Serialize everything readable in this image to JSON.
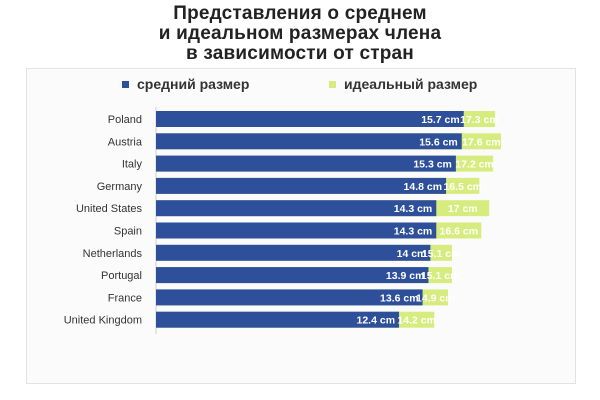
{
  "title_lines": [
    "Представления о среднем",
    "и идеальном размерах члена",
    "в зависимости от стран"
  ],
  "colors": {
    "average": "#2e4f9a",
    "ideal": "#d7ec7e",
    "title": "#222222"
  },
  "chart_data": {
    "type": "bar",
    "orientation": "horizontal",
    "title": "Представления о среднем и идеальном размерах члена в зависимости от стран",
    "unit": "cm",
    "categories": [
      "Poland",
      "Austria",
      "Italy",
      "Germany",
      "United States",
      "Spain",
      "Netherlands",
      "Portugal",
      "France",
      "United Kingdom"
    ],
    "series": [
      {
        "name": "средний размер",
        "values": [
          15.7,
          15.6,
          15.3,
          14.8,
          14.3,
          14.3,
          14.0,
          13.9,
          13.6,
          12.4
        ],
        "labels": [
          "15.7 cm",
          "15.6 cm",
          "15.3 cm",
          "14.8 cm",
          "14.3 cm",
          "14.3 cm",
          "14 cm",
          "13.9 cm",
          "13.6 cm",
          "12.4 cm"
        ]
      },
      {
        "name": "идеальный размер",
        "values": [
          17.3,
          17.6,
          17.2,
          16.5,
          17.0,
          16.6,
          15.1,
          15.1,
          14.9,
          14.2
        ],
        "labels": [
          "17.3 cm",
          "17.6 cm",
          "17.2 cm",
          "16.5 cm",
          "17 cm",
          "16.6 cm",
          "15.1 cm",
          "15.1 cm",
          "14.9 cm",
          "14.2 cm"
        ]
      }
    ],
    "legend": "top",
    "overlapping_bars": true,
    "grid": false
  }
}
